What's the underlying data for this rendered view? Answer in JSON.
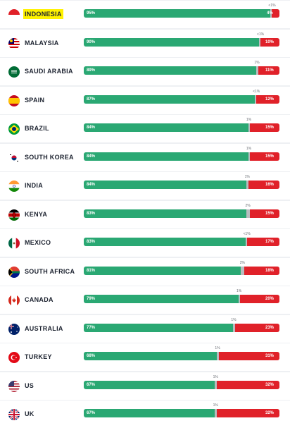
{
  "chart_data": {
    "type": "bar",
    "stacked": true,
    "orientation": "horizontal",
    "highlighted": "INDONESIA",
    "colors": {
      "yes": "#2aa873",
      "dont_know": "#b9bcbf",
      "no": "#e02129",
      "highlight": "#fff200"
    },
    "rows": [
      {
        "country": "INDONESIA",
        "flag": "indonesia-flag-icon",
        "yes": 95,
        "yes_label": "95%",
        "dk": 0.5,
        "dk_label": "<1%",
        "no": 4,
        "no_label": "4%"
      },
      {
        "country": "MALAYSIA",
        "flag": "malaysia-flag-icon",
        "yes": 90,
        "yes_label": "90%",
        "dk": 0.5,
        "dk_label": "<1%",
        "no": 10,
        "no_label": "10%"
      },
      {
        "country": "SAUDI ARABIA",
        "flag": "saudi-arabia-flag-icon",
        "yes": 89,
        "yes_label": "89%",
        "dk": 1,
        "dk_label": "1%",
        "no": 11,
        "no_label": "11%"
      },
      {
        "country": "SPAIN",
        "flag": "spain-flag-icon",
        "yes": 87,
        "yes_label": "87%",
        "dk": 0.5,
        "dk_label": "<1%",
        "no": 12,
        "no_label": "12%"
      },
      {
        "country": "BRAZIL",
        "flag": "brazil-flag-icon",
        "yes": 84,
        "yes_label": "84%",
        "dk": 1,
        "dk_label": "1%",
        "no": 15,
        "no_label": "15%"
      },
      {
        "country": "SOUTH KOREA",
        "flag": "south-korea-flag-icon",
        "yes": 84,
        "yes_label": "84%",
        "dk": 1,
        "dk_label": "1%",
        "no": 15,
        "no_label": "15%"
      },
      {
        "country": "INDIA",
        "flag": "india-flag-icon",
        "yes": 84,
        "yes_label": "84%",
        "dk": 1,
        "dk_label": "1%",
        "no": 16,
        "no_label": "16%"
      },
      {
        "country": "KENYA",
        "flag": "kenya-flag-icon",
        "yes": 83,
        "yes_label": "83%",
        "dk": 2,
        "dk_label": "2%",
        "no": 15,
        "no_label": "15%"
      },
      {
        "country": "MEXICO",
        "flag": "mexico-flag-icon",
        "yes": 83,
        "yes_label": "83%",
        "dk": 0.5,
        "dk_label": "<1%",
        "no": 17,
        "no_label": "17%"
      },
      {
        "country": "SOUTH AFRICA",
        "flag": "south-africa-flag-icon",
        "yes": 81,
        "yes_label": "81%",
        "dk": 2,
        "dk_label": "2%",
        "no": 18,
        "no_label": "18%"
      },
      {
        "country": "CANADA",
        "flag": "canada-flag-icon",
        "yes": 79,
        "yes_label": "79%",
        "dk": 1,
        "dk_label": "1%",
        "no": 20,
        "no_label": "20%"
      },
      {
        "country": "AUSTRALIA",
        "flag": "australia-flag-icon",
        "yes": 77,
        "yes_label": "77%",
        "dk": 1,
        "dk_label": "1%",
        "no": 23,
        "no_label": "23%"
      },
      {
        "country": "TURKEY",
        "flag": "turkey-flag-icon",
        "yes": 68,
        "yes_label": "68%",
        "dk": 1,
        "dk_label": "1%",
        "no": 31,
        "no_label": "31%"
      },
      {
        "country": "US",
        "flag": "us-flag-icon",
        "yes": 67,
        "yes_label": "67%",
        "dk": 1,
        "dk_label": "1%",
        "no": 32,
        "no_label": "32%"
      },
      {
        "country": "UK",
        "flag": "uk-flag-icon",
        "yes": 67,
        "yes_label": "67%",
        "dk": 1,
        "dk_label": "1%",
        "no": 32,
        "no_label": "32%"
      }
    ]
  }
}
